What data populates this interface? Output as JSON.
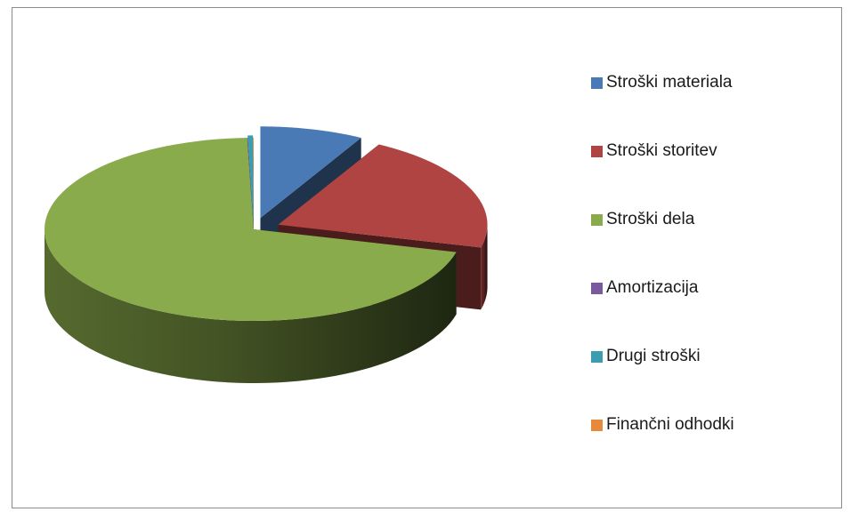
{
  "chart_data": {
    "type": "pie",
    "three_d": true,
    "exploded": true,
    "start_angle_deg": 90,
    "legend_position": "right",
    "categories": [
      "Stroški materiala",
      "Stroški storitev",
      "Stroški dela",
      "Amortizacija",
      "Drugi stroški",
      "Finančni odhodki"
    ],
    "values": [
      8.0,
      21.0,
      70.5,
      0.05,
      0.4,
      0.05
    ],
    "colors": [
      "#4a7ab5",
      "#b04442",
      "#8aab4c",
      "#7a5a9e",
      "#3c9cb0",
      "#e8883a"
    ]
  }
}
